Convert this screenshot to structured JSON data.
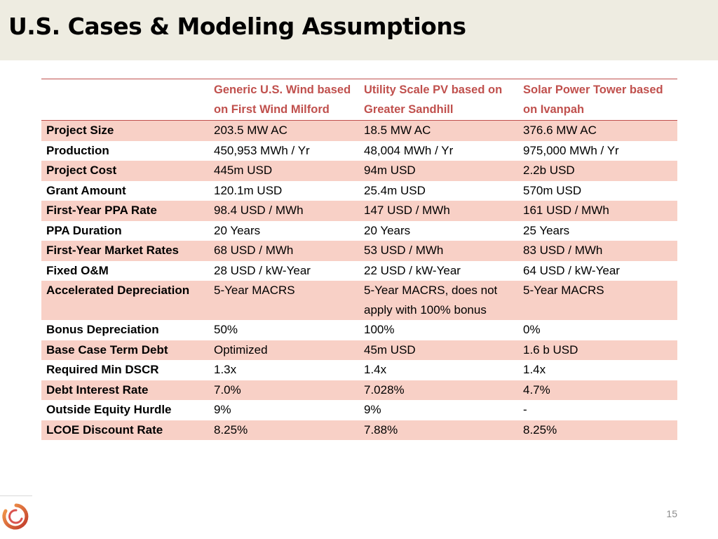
{
  "slide": {
    "title": "U.S. Cases & Modeling Assumptions",
    "page_number": "15"
  },
  "table": {
    "header": [
      "",
      "Generic U.S. Wind based on First Wind Milford",
      "Utility Scale PV based on Greater Sandhill",
      "Solar Power Tower based on Ivanpah"
    ],
    "rows": [
      [
        "Project Size",
        "203.5 MW AC",
        "18.5 MW AC",
        "376.6 MW AC"
      ],
      [
        "Production",
        "450,953 MWh / Yr",
        "48,004 MWh / Yr",
        "975,000 MWh / Yr"
      ],
      [
        "Project Cost",
        "445m USD",
        "94m USD",
        "2.2b USD"
      ],
      [
        "Grant Amount",
        "120.1m USD",
        "25.4m USD",
        "570m USD"
      ],
      [
        "First-Year PPA Rate",
        "98.4 USD / MWh",
        "147 USD / MWh",
        "161 USD / MWh"
      ],
      [
        "PPA Duration",
        "20 Years",
        "20 Years",
        "25 Years"
      ],
      [
        "First-Year Market Rates",
        "68 USD / MWh",
        "53 USD / MWh",
        "83 USD / MWh"
      ],
      [
        "Fixed O&M",
        "28 USD / kW-Year",
        "22 USD / kW-Year",
        "64 USD / kW-Year"
      ],
      [
        "Accelerated Depreciation",
        "5-Year MACRS",
        "5-Year MACRS, does not apply with 100% bonus",
        "5-Year MACRS"
      ],
      [
        "Bonus Depreciation",
        "50%",
        "100%",
        "0%"
      ],
      [
        "Base Case Term Debt",
        "Optimized",
        "45m USD",
        "1.6 b USD"
      ],
      [
        "Required Min DSCR",
        "1.3x",
        "1.4x",
        "1.4x"
      ],
      [
        "Debt Interest Rate",
        "7.0%",
        "7.028%",
        "4.7%"
      ],
      [
        "Outside Equity Hurdle",
        "9%",
        "9%",
        "-"
      ],
      [
        "LCOE Discount Rate",
        "8.25%",
        "7.88%",
        "8.25%"
      ]
    ]
  },
  "colors": {
    "accent": "#c0504d",
    "band_row": "#f8d0c6",
    "title_band": "#eeece1"
  },
  "logo": {
    "icon": "circular-swirl-logo-icon"
  }
}
